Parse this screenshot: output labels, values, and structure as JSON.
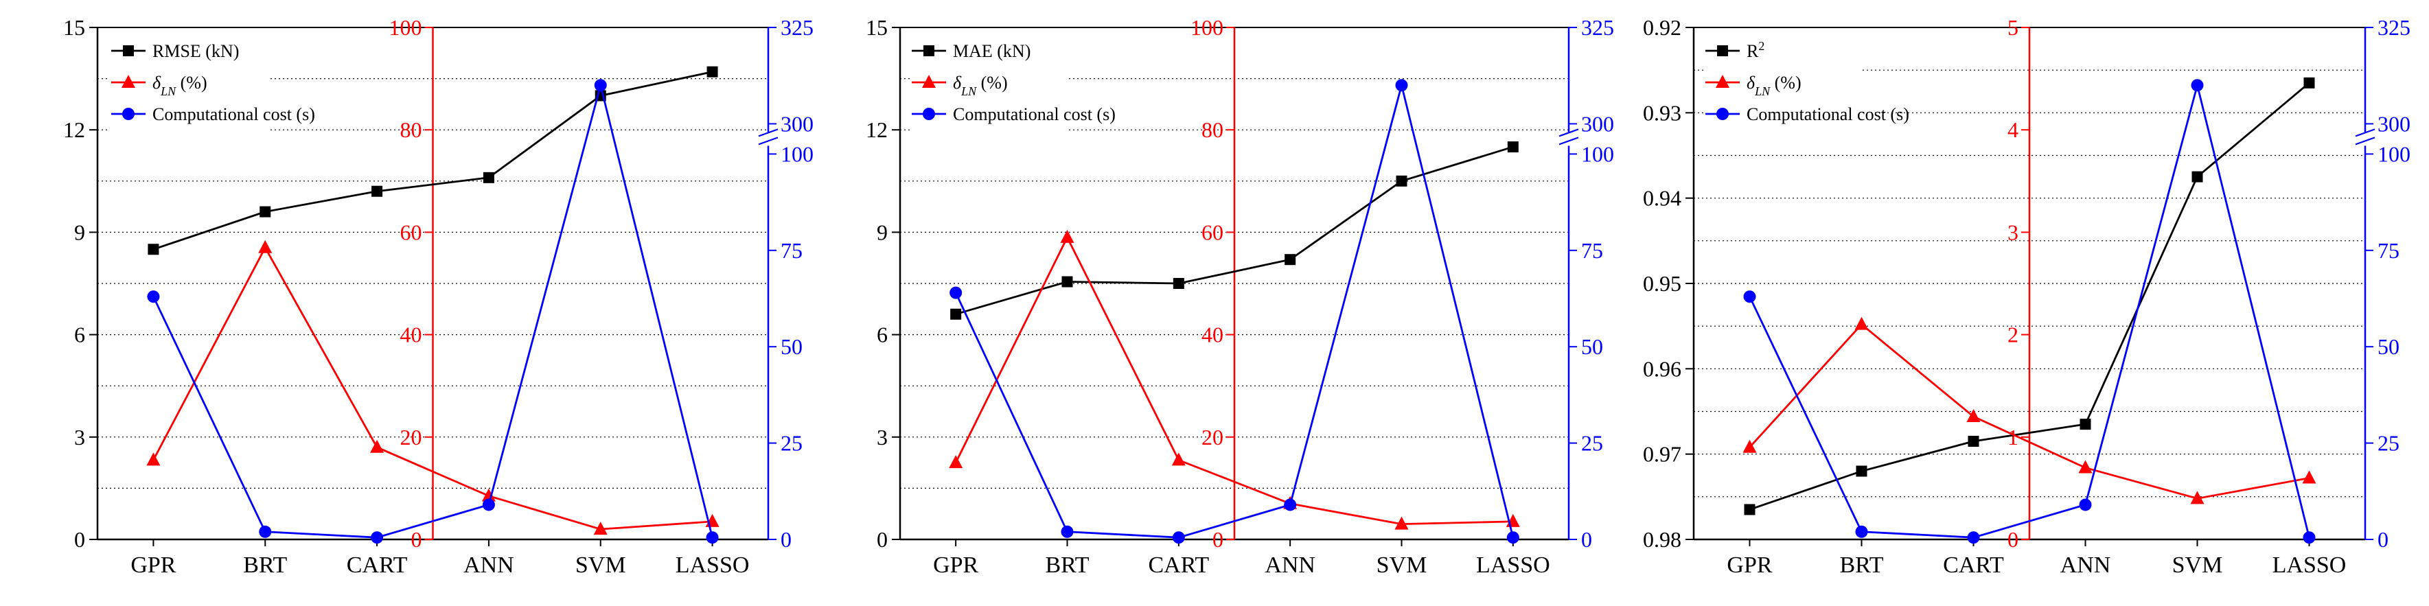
{
  "chart_data": [
    {
      "type": "line",
      "categories": [
        "GPR",
        "BRT",
        "CART",
        "ANN",
        "SVM",
        "LASSO"
      ],
      "left_axis": {
        "min": 0,
        "max": 15,
        "ticks": [
          "0",
          "3",
          "6",
          "9",
          "12",
          "15"
        ],
        "inverted": false,
        "color": "#000000"
      },
      "red_axis": {
        "min": 0,
        "max": 100,
        "ticks": [
          "0",
          "20",
          "40",
          "60",
          "80",
          "100"
        ],
        "color": "#ff0000"
      },
      "blue_axis": {
        "ticks": [
          "0",
          "25",
          "50",
          "75",
          "100",
          "300",
          "325"
        ],
        "break_between": [
          100,
          300
        ],
        "color": "#0000ff"
      },
      "series": [
        {
          "name": "RMSE (kN)",
          "label_main": "RMSE (kN)",
          "color": "#000000",
          "marker": "square",
          "axis": "left",
          "values": [
            8.5,
            9.6,
            10.2,
            10.6,
            13.0,
            13.7
          ]
        },
        {
          "name": "δLN (%)",
          "label_main": "δ",
          "label_sub": "LN",
          "label_suffix": " (%)",
          "color": "#ff0000",
          "marker": "triangle",
          "axis": "red",
          "values": [
            15.5,
            57.0,
            18.0,
            8.5,
            2.0,
            3.5
          ]
        },
        {
          "name": "Computational cost (s)",
          "label_main": "Computational cost  (s)",
          "color": "#0000ff",
          "marker": "circle",
          "axis": "blue",
          "values": [
            63,
            2,
            0.5,
            9,
            310,
            0.5
          ]
        }
      ]
    },
    {
      "type": "line",
      "categories": [
        "GPR",
        "BRT",
        "CART",
        "ANN",
        "SVM",
        "LASSO"
      ],
      "left_axis": {
        "min": 0,
        "max": 15,
        "ticks": [
          "0",
          "3",
          "6",
          "9",
          "12",
          "15"
        ],
        "inverted": false,
        "color": "#000000"
      },
      "red_axis": {
        "min": 0,
        "max": 100,
        "ticks": [
          "0",
          "20",
          "40",
          "60",
          "80",
          "100"
        ],
        "color": "#ff0000"
      },
      "blue_axis": {
        "ticks": [
          "0",
          "25",
          "50",
          "75",
          "100",
          "300",
          "325"
        ],
        "break_between": [
          100,
          300
        ],
        "color": "#0000ff"
      },
      "series": [
        {
          "name": "MAE (kN)",
          "label_main": "MAE (kN)",
          "color": "#000000",
          "marker": "square",
          "axis": "left",
          "values": [
            6.6,
            7.55,
            7.5,
            8.2,
            10.5,
            11.5
          ]
        },
        {
          "name": "δLN (%)",
          "label_main": "δ",
          "label_sub": "LN",
          "label_suffix": " (%)",
          "color": "#ff0000",
          "marker": "triangle",
          "axis": "red",
          "values": [
            15.0,
            59.0,
            15.5,
            7.0,
            3.0,
            3.5
          ]
        },
        {
          "name": "Computational cost (s)",
          "label_main": "Computational cost  (s)",
          "color": "#0000ff",
          "marker": "circle",
          "axis": "blue",
          "values": [
            64,
            2,
            0.5,
            9,
            310,
            0.5
          ]
        }
      ]
    },
    {
      "type": "line",
      "categories": [
        "GPR",
        "BRT",
        "CART",
        "ANN",
        "SVM",
        "LASSO"
      ],
      "left_axis": {
        "min": 0.92,
        "max": 0.98,
        "ticks": [
          "0.92",
          "0.93",
          "0.94",
          "0.95",
          "0.96",
          "0.97",
          "0.98"
        ],
        "inverted": true,
        "color": "#000000"
      },
      "red_axis": {
        "min": 0,
        "max": 5,
        "ticks": [
          "0",
          "1",
          "2",
          "3",
          "4",
          "5"
        ],
        "color": "#ff0000"
      },
      "blue_axis": {
        "ticks": [
          "0",
          "25",
          "50",
          "75",
          "100",
          "300",
          "325"
        ],
        "break_between": [
          100,
          300
        ],
        "color": "#0000ff"
      },
      "series": [
        {
          "name": "R2",
          "label_main": "R",
          "label_sup": "2",
          "color": "#000000",
          "marker": "square",
          "axis": "left",
          "values": [
            0.9765,
            0.972,
            0.9685,
            0.9665,
            0.9375,
            0.9265
          ]
        },
        {
          "name": "δLN (%)",
          "label_main": "δ",
          "label_sub": "LN",
          "label_suffix": " (%)",
          "color": "#ff0000",
          "marker": "triangle",
          "axis": "red",
          "values": [
            0.9,
            2.1,
            1.2,
            0.7,
            0.4,
            0.6
          ]
        },
        {
          "name": "Computational cost (s)",
          "label_main": "Computational cost  (s)",
          "color": "#0000ff",
          "marker": "circle",
          "axis": "blue",
          "values": [
            63,
            2,
            0.5,
            9,
            310,
            0.5
          ]
        }
      ]
    }
  ]
}
